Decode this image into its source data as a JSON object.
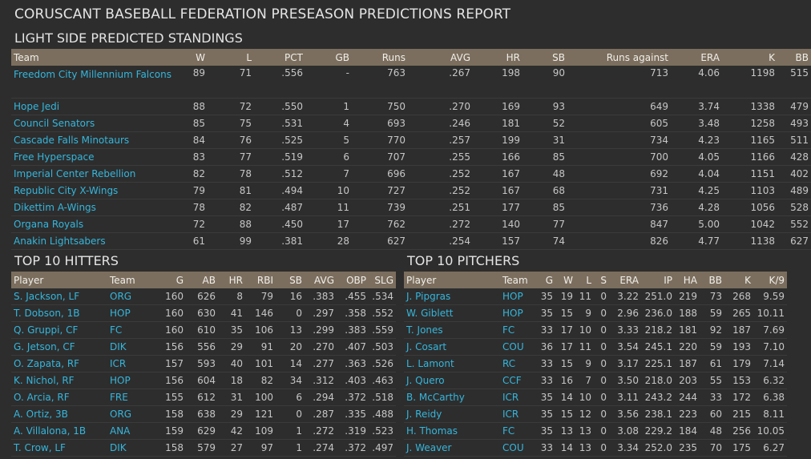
{
  "report_title": "CORUSCANT BASEBALL FEDERATION PRESEASON PREDICTIONS REPORT",
  "standings": {
    "title": "LIGHT SIDE PREDICTED STANDINGS",
    "headers": [
      "Team",
      "W",
      "L",
      "PCT",
      "GB",
      "Runs",
      "AVG",
      "HR",
      "SB",
      "Runs against",
      "ERA",
      "K",
      "BB"
    ],
    "rows": [
      [
        "Freedom City Millennium Falcons",
        "89",
        "71",
        ".556",
        "-",
        "763",
        ".267",
        "198",
        "90",
        "713",
        "4.06",
        "1198",
        "515"
      ],
      [
        "Hope Jedi",
        "88",
        "72",
        ".550",
        "1",
        "750",
        ".270",
        "169",
        "93",
        "649",
        "3.74",
        "1338",
        "479"
      ],
      [
        "Council Senators",
        "85",
        "75",
        ".531",
        "4",
        "693",
        ".246",
        "181",
        "52",
        "605",
        "3.48",
        "1258",
        "493"
      ],
      [
        "Cascade Falls Minotaurs",
        "84",
        "76",
        ".525",
        "5",
        "770",
        ".257",
        "199",
        "31",
        "734",
        "4.23",
        "1165",
        "511"
      ],
      [
        "Free Hyperspace",
        "83",
        "77",
        ".519",
        "6",
        "707",
        ".255",
        "166",
        "85",
        "700",
        "4.05",
        "1166",
        "428"
      ],
      [
        "Imperial Center Rebellion",
        "82",
        "78",
        ".512",
        "7",
        "696",
        ".252",
        "167",
        "48",
        "692",
        "4.04",
        "1151",
        "402"
      ],
      [
        "Republic City X-Wings",
        "79",
        "81",
        ".494",
        "10",
        "727",
        ".252",
        "167",
        "68",
        "731",
        "4.25",
        "1103",
        "489"
      ],
      [
        "Dikettim A-Wings",
        "78",
        "82",
        ".487",
        "11",
        "739",
        ".251",
        "177",
        "85",
        "736",
        "4.28",
        "1056",
        "528"
      ],
      [
        "Organa Royals",
        "72",
        "88",
        ".450",
        "17",
        "762",
        ".272",
        "140",
        "77",
        "847",
        "5.00",
        "1042",
        "552"
      ],
      [
        "Anakin Lightsabers",
        "61",
        "99",
        ".381",
        "28",
        "627",
        ".254",
        "157",
        "74",
        "826",
        "4.77",
        "1138",
        "627"
      ]
    ]
  },
  "hitters": {
    "title": "TOP 10 HITTERS",
    "headers": [
      "Player",
      "Team",
      "G",
      "AB",
      "HR",
      "RBI",
      "SB",
      "AVG",
      "OBP",
      "SLG"
    ],
    "rows": [
      [
        "S. Jackson, LF",
        "ORG",
        "160",
        "626",
        "8",
        "79",
        "16",
        ".383",
        ".455",
        ".534"
      ],
      [
        "T. Dobson, 1B",
        "HOP",
        "160",
        "630",
        "41",
        "146",
        "0",
        ".297",
        ".358",
        ".552"
      ],
      [
        "Q. Gruppi, CF",
        "FC",
        "160",
        "610",
        "35",
        "106",
        "13",
        ".299",
        ".383",
        ".559"
      ],
      [
        "G. Jetson, CF",
        "DIK",
        "156",
        "556",
        "29",
        "91",
        "20",
        ".270",
        ".407",
        ".503"
      ],
      [
        "O. Zapata, RF",
        "ICR",
        "157",
        "593",
        "40",
        "101",
        "14",
        ".277",
        ".363",
        ".526"
      ],
      [
        "K. Nichol, RF",
        "HOP",
        "156",
        "604",
        "18",
        "82",
        "34",
        ".312",
        ".403",
        ".463"
      ],
      [
        "O. Arcia, RF",
        "FRE",
        "155",
        "612",
        "31",
        "100",
        "6",
        ".294",
        ".372",
        ".518"
      ],
      [
        "A. Ortiz, 3B",
        "ORG",
        "158",
        "638",
        "29",
        "121",
        "0",
        ".287",
        ".335",
        ".488"
      ],
      [
        "A. Villalona, 1B",
        "ANA",
        "159",
        "629",
        "42",
        "109",
        "1",
        ".272",
        ".319",
        ".523"
      ],
      [
        "T. Crow, LF",
        "DIK",
        "158",
        "579",
        "27",
        "97",
        "1",
        ".274",
        ".372",
        ".497"
      ]
    ]
  },
  "pitchers": {
    "title": "TOP 10 PITCHERS",
    "headers": [
      "Player",
      "Team",
      "G",
      "W",
      "L",
      "S",
      "ERA",
      "IP",
      "HA",
      "BB",
      "K",
      "K/9"
    ],
    "rows": [
      [
        "J. Pipgras",
        "HOP",
        "35",
        "19",
        "11",
        "0",
        "3.22",
        "251.0",
        "219",
        "73",
        "268",
        "9.59"
      ],
      [
        "W. Giblett",
        "HOP",
        "35",
        "15",
        "9",
        "0",
        "2.96",
        "236.0",
        "188",
        "59",
        "265",
        "10.11"
      ],
      [
        "T. Jones",
        "FC",
        "33",
        "17",
        "10",
        "0",
        "3.33",
        "218.2",
        "181",
        "92",
        "187",
        "7.69"
      ],
      [
        "J. Cosart",
        "COU",
        "36",
        "17",
        "11",
        "0",
        "3.54",
        "245.1",
        "220",
        "59",
        "193",
        "7.10"
      ],
      [
        "L. Lamont",
        "RC",
        "33",
        "15",
        "9",
        "0",
        "3.17",
        "225.1",
        "187",
        "61",
        "179",
        "7.14"
      ],
      [
        "J. Quero",
        "CCF",
        "33",
        "16",
        "7",
        "0",
        "3.50",
        "218.0",
        "203",
        "55",
        "153",
        "6.32"
      ],
      [
        "B. McCarthy",
        "ICR",
        "35",
        "14",
        "10",
        "0",
        "3.11",
        "243.2",
        "244",
        "33",
        "172",
        "6.38"
      ],
      [
        "J. Reidy",
        "ICR",
        "35",
        "15",
        "12",
        "0",
        "3.56",
        "238.1",
        "223",
        "60",
        "215",
        "8.11"
      ],
      [
        "H. Thomas",
        "FC",
        "35",
        "13",
        "13",
        "0",
        "3.08",
        "229.2",
        "184",
        "48",
        "256",
        "10.05"
      ],
      [
        "J. Weaver",
        "COU",
        "33",
        "14",
        "13",
        "0",
        "3.34",
        "252.0",
        "235",
        "70",
        "175",
        "6.27"
      ]
    ]
  }
}
